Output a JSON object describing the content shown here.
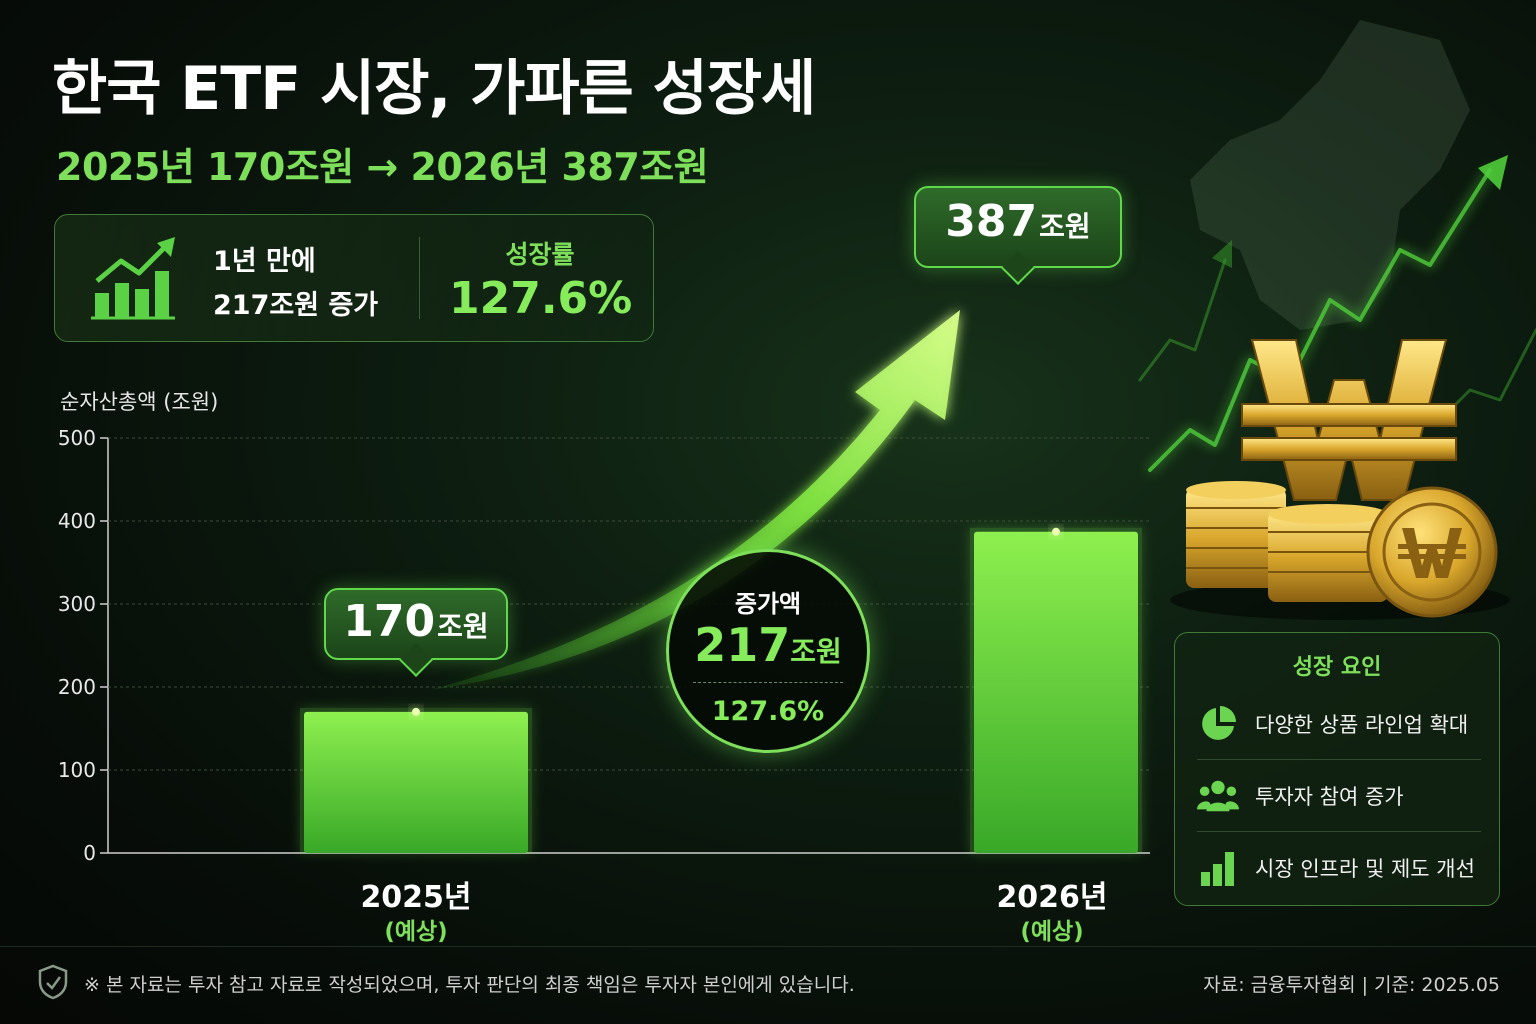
{
  "header": {
    "title": "한국 ETF 시장, 가파른 성장세",
    "subtitle": "2025년 170조원 → 2026년 387조원"
  },
  "summary": {
    "icon": "bar-chart-up-icon",
    "line1": "1년 만에",
    "line2": "217조원 증가",
    "growth_label": "성장률",
    "growth_value": "127.6%"
  },
  "increase": {
    "label": "증가액",
    "value": "217",
    "unit": "조원",
    "percent": "127.6%"
  },
  "chart_data": {
    "type": "bar",
    "ylabel": "순자산총액 (조원)",
    "ylim": [
      0,
      500
    ],
    "yticks": [
      "0",
      "100",
      "200",
      "300",
      "400",
      "500"
    ],
    "grid": true,
    "categories": [
      "2025년",
      "2026년"
    ],
    "category_sub": [
      "(예상)",
      "(예상)"
    ],
    "values": [
      170,
      387
    ],
    "value_labels": [
      "170",
      "387"
    ],
    "value_unit": "조원"
  },
  "factors": {
    "title": "성장 요인",
    "items": [
      {
        "icon": "pie-chart-icon",
        "label": "다양한 상품 라인업 확대"
      },
      {
        "icon": "people-icon",
        "label": "투자자 참여 증가"
      },
      {
        "icon": "bar-chart-icon",
        "label": "시장 인프라 및 제도 개선"
      }
    ]
  },
  "footer": {
    "icon": "shield-icon",
    "disclaimer": "※ 본 자료는 투자 참고 자료로 작성되었으며, 투자 판단의 최종 책임은 투자자 본인에게 있습니다.",
    "source": "자료: 금융투자협회  |  기준: 2025.05"
  },
  "colors": {
    "accent": "#7ee05a",
    "bar_top": "#8ef04f",
    "bar_bottom": "#3fb62c",
    "gold": "#d9a72c"
  }
}
